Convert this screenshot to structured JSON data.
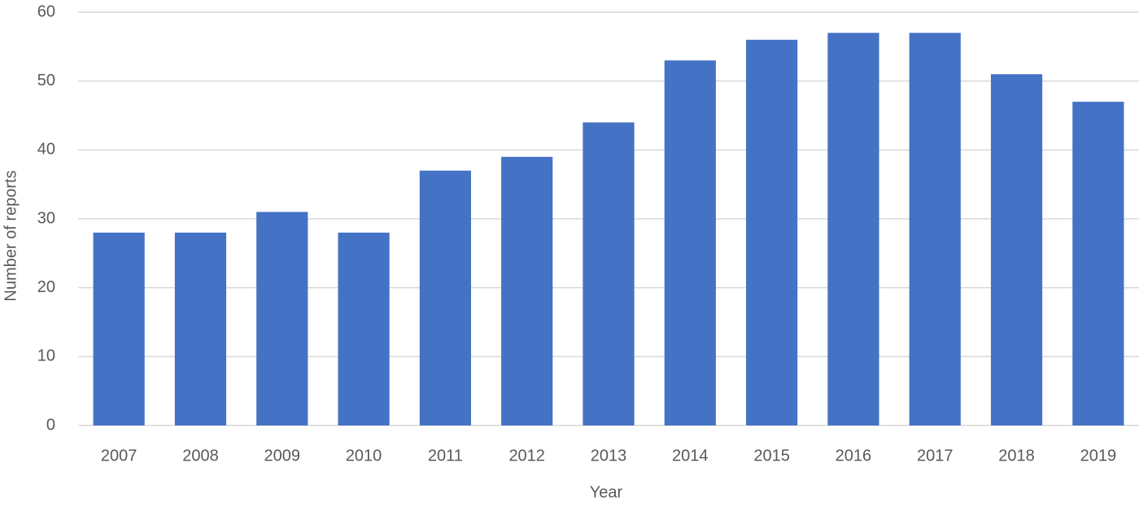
{
  "chart_data": {
    "type": "bar",
    "x_label": "Year",
    "y_label": "Number of reports",
    "categories": [
      "2007",
      "2008",
      "2009",
      "2010",
      "2011",
      "2012",
      "2013",
      "2014",
      "2015",
      "2016",
      "2017",
      "2018",
      "2019"
    ],
    "values": [
      28,
      28,
      31,
      28,
      37,
      39,
      44,
      53,
      56,
      57,
      57,
      51,
      47
    ],
    "color": "#4472c4",
    "ylim": [
      0,
      60
    ],
    "yticks": [
      0,
      10,
      20,
      30,
      40,
      50,
      60
    ],
    "grid": true
  }
}
